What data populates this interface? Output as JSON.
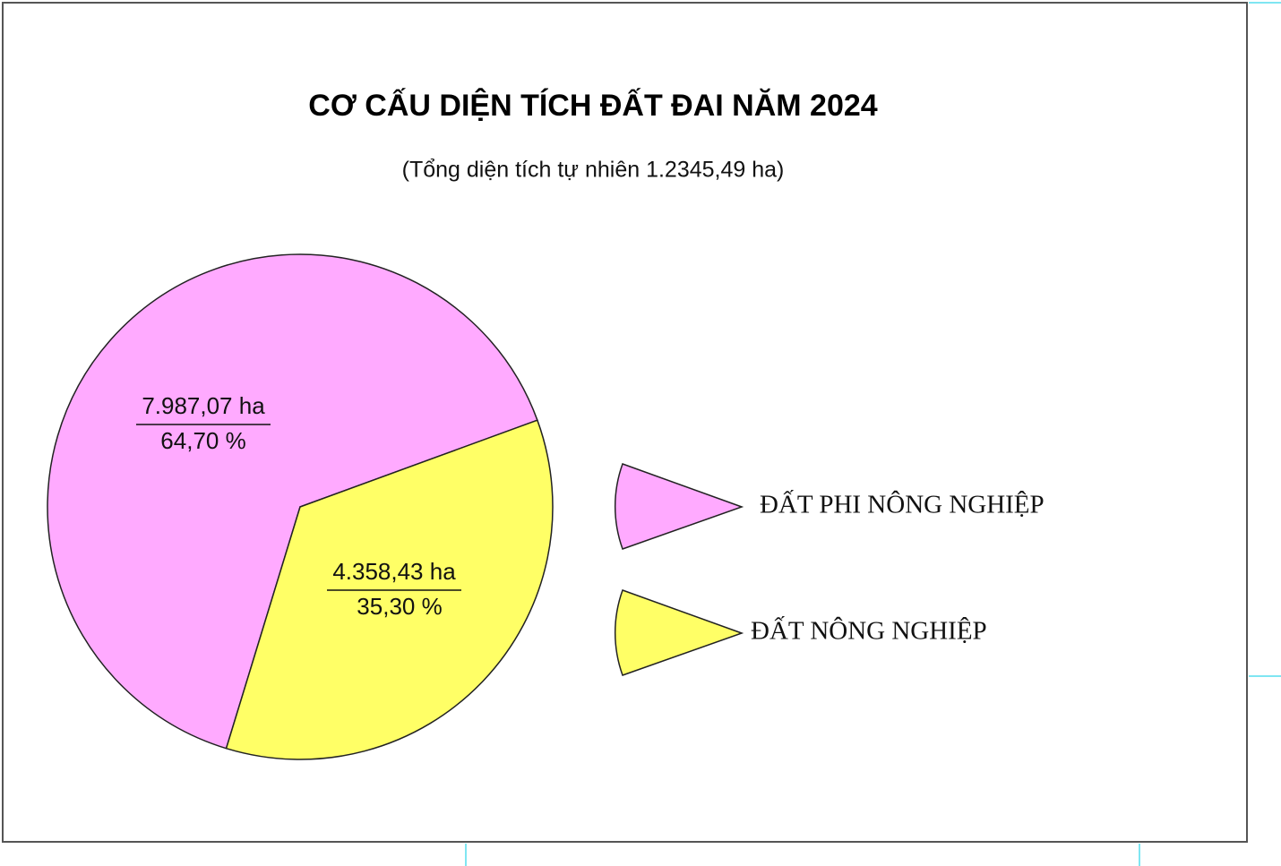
{
  "chart_data": {
    "type": "pie",
    "title": "CƠ CẤU DIỆN TÍCH ĐẤT ĐAI NĂM 2024",
    "subtitle": "(Tổng diện tích tự nhiên 1.2345,49 ha)",
    "categories": [
      "ĐẤT PHI NÔNG NGHIỆP",
      "ĐẤT NÔNG NGHIỆP"
    ],
    "values": [
      64.7,
      35.3
    ],
    "value_labels": [
      "64,70 %",
      "35,30 %"
    ],
    "area_labels": [
      "7.987,07 ha",
      "4.358,43 ha"
    ],
    "colors": [
      "#ffaaff",
      "#ffff66"
    ]
  }
}
